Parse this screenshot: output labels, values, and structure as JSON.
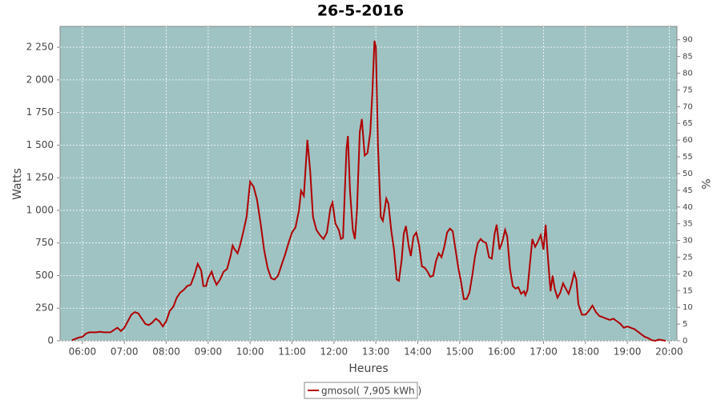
{
  "chart_data": {
    "type": "line",
    "title": "26-5-2016",
    "x_label": "Heures",
    "y_label": "Watts",
    "y2_label": "%",
    "x": [
      "05:45",
      "05:55",
      "06:00",
      "06:05",
      "06:10",
      "06:20",
      "06:25",
      "06:30",
      "06:40",
      "06:50",
      "06:55",
      "07:00",
      "07:05",
      "07:10",
      "07:15",
      "07:20",
      "07:25",
      "07:30",
      "07:35",
      "07:40",
      "07:45",
      "07:50",
      "07:55",
      "08:00",
      "08:05",
      "08:10",
      "08:15",
      "08:20",
      "08:25",
      "08:30",
      "08:35",
      "08:40",
      "08:45",
      "08:50",
      "08:53",
      "08:57",
      "09:00",
      "09:05",
      "09:08",
      "09:12",
      "09:17",
      "09:22",
      "09:27",
      "09:32",
      "09:35",
      "09:38",
      "09:42",
      "09:45",
      "09:50",
      "09:55",
      "10:00",
      "10:05",
      "10:10",
      "10:15",
      "10:20",
      "10:25",
      "10:30",
      "10:35",
      "10:40",
      "10:45",
      "10:50",
      "10:55",
      "11:00",
      "11:05",
      "11:10",
      "11:13",
      "11:17",
      "11:22",
      "11:26",
      "11:30",
      "11:35",
      "11:40",
      "11:45",
      "11:50",
      "11:55",
      "11:58",
      "12:02",
      "12:07",
      "12:10",
      "12:13",
      "12:18",
      "12:20",
      "12:23",
      "12:27",
      "12:30",
      "12:33",
      "12:37",
      "12:40",
      "12:44",
      "12:48",
      "12:52",
      "12:55",
      "12:58",
      "13:00",
      "13:03",
      "13:07",
      "13:10",
      "13:15",
      "13:18",
      "13:22",
      "13:26",
      "13:30",
      "13:33",
      "13:37",
      "13:40",
      "13:43",
      "13:47",
      "13:50",
      "13:54",
      "13:58",
      "14:02",
      "14:06",
      "14:10",
      "14:14",
      "14:18",
      "14:22",
      "14:26",
      "14:30",
      "14:34",
      "14:38",
      "14:42",
      "14:46",
      "14:50",
      "14:54",
      "14:58",
      "15:02",
      "15:06",
      "15:10",
      "15:14",
      "15:18",
      "15:22",
      "15:26",
      "15:30",
      "15:34",
      "15:38",
      "15:42",
      "15:46",
      "15:50",
      "15:53",
      "15:57",
      "16:01",
      "16:05",
      "16:08",
      "16:12",
      "16:16",
      "16:20",
      "16:24",
      "16:28",
      "16:32",
      "16:34",
      "16:37",
      "16:40",
      "16:44",
      "16:48",
      "16:52",
      "16:56",
      "17:00",
      "17:03",
      "17:06",
      "17:10",
      "17:13",
      "17:16",
      "17:20",
      "17:24",
      "17:28",
      "17:32",
      "17:36",
      "17:40",
      "17:44",
      "17:47",
      "17:50",
      "17:55",
      "18:00",
      "18:05",
      "18:10",
      "18:15",
      "18:20",
      "18:25",
      "18:30",
      "18:35",
      "18:40",
      "18:45",
      "18:50",
      "18:55",
      "19:00",
      "19:05",
      "19:10",
      "19:15",
      "19:20",
      "19:25",
      "19:30",
      "19:35",
      "19:40",
      "19:45",
      "19:50",
      "19:55"
    ],
    "series": [
      {
        "name": "gmosol( 7,905 kWh )",
        "color": "#b00000",
        "values": [
          5,
          25,
          30,
          55,
          65,
          65,
          70,
          65,
          65,
          100,
          75,
          100,
          150,
          200,
          220,
          210,
          170,
          130,
          120,
          140,
          170,
          150,
          110,
          150,
          230,
          260,
          330,
          370,
          390,
          420,
          430,
          500,
          590,
          540,
          420,
          420,
          480,
          530,
          480,
          430,
          470,
          530,
          550,
          650,
          730,
          700,
          670,
          720,
          830,
          950,
          1220,
          1180,
          1080,
          900,
          700,
          560,
          480,
          470,
          500,
          580,
          660,
          750,
          830,
          870,
          1000,
          1150,
          1110,
          1540,
          1300,
          950,
          850,
          810,
          780,
          830,
          1020,
          1060,
          900,
          850,
          780,
          790,
          1470,
          1570,
          1150,
          850,
          780,
          1000,
          1600,
          1700,
          1420,
          1440,
          1600,
          1900,
          2300,
          2250,
          1500,
          950,
          920,
          1090,
          1050,
          850,
          700,
          470,
          460,
          620,
          820,
          880,
          730,
          650,
          800,
          830,
          730,
          570,
          560,
          530,
          490,
          500,
          610,
          670,
          640,
          720,
          830,
          860,
          840,
          700,
          560,
          450,
          320,
          320,
          370,
          500,
          650,
          750,
          780,
          760,
          750,
          640,
          630,
          820,
          890,
          700,
          760,
          850,
          800,
          550,
          420,
          400,
          410,
          360,
          380,
          350,
          390,
          560,
          780,
          720,
          760,
          810,
          700,
          890,
          660,
          380,
          500,
          400,
          330,
          370,
          440,
          400,
          360,
          430,
          520,
          470,
          280,
          200,
          200,
          230,
          270,
          220,
          190,
          180,
          170,
          160,
          170,
          150,
          130,
          100,
          110,
          100,
          90,
          70,
          50,
          30,
          20,
          5,
          0,
          10,
          5,
          0
        ]
      }
    ],
    "xlim": [
      "05:28",
      "20:11"
    ],
    "xticks": [
      "06:00",
      "07:00",
      "08:00",
      "09:00",
      "10:00",
      "11:00",
      "12:00",
      "13:00",
      "14:00",
      "15:00",
      "16:00",
      "17:00",
      "18:00",
      "19:00",
      "20:00"
    ],
    "ylim": [
      0,
      2410
    ],
    "yticks": [
      0,
      250,
      500,
      750,
      {
        "value": 1000,
        "label": "1 000"
      },
      {
        "value": 1250,
        "label": "1 250"
      },
      {
        "value": 1500,
        "label": "1 500"
      },
      {
        "value": 1750,
        "label": "1 750"
      },
      {
        "value": 2000,
        "label": "2 000"
      },
      {
        "value": 2250,
        "label": "2 250"
      }
    ],
    "y2lim": [
      0,
      94
    ],
    "y2ticks": [
      0,
      5,
      10,
      15,
      20,
      25,
      30,
      35,
      40,
      45,
      50,
      55,
      60,
      65,
      70,
      75,
      80,
      85,
      90
    ],
    "grid": true,
    "background": "#9fc3c3"
  }
}
